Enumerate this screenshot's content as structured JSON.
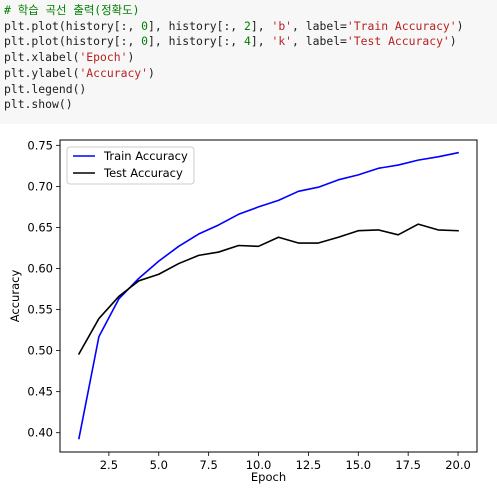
{
  "code_cell": {
    "lines": [
      [
        {
          "t": "# 학습 곡선 출력(정확도)",
          "c": "c-comment"
        }
      ],
      [
        {
          "t": "plt.plot(history[:, "
        },
        {
          "t": "0",
          "c": "c-num"
        },
        {
          "t": "], history[:, "
        },
        {
          "t": "2",
          "c": "c-num"
        },
        {
          "t": "], "
        },
        {
          "t": "'b'",
          "c": "c-str"
        },
        {
          "t": ", label="
        },
        {
          "t": "'Train Accuracy'",
          "c": "c-str"
        },
        {
          "t": ")"
        }
      ],
      [
        {
          "t": "plt.plot(history[:, "
        },
        {
          "t": "0",
          "c": "c-num"
        },
        {
          "t": "], history[:, "
        },
        {
          "t": "4",
          "c": "c-num"
        },
        {
          "t": "], "
        },
        {
          "t": "'k'",
          "c": "c-str"
        },
        {
          "t": ", label="
        },
        {
          "t": "'Test Accuracy'",
          "c": "c-str"
        },
        {
          "t": ")"
        }
      ],
      [
        {
          "t": "plt.xlabel("
        },
        {
          "t": "'Epoch'",
          "c": "c-str"
        },
        {
          "t": ")"
        }
      ],
      [
        {
          "t": "plt.ylabel("
        },
        {
          "t": "'Accuracy'",
          "c": "c-str"
        },
        {
          "t": ")"
        }
      ],
      [
        {
          "t": "plt.legend()"
        }
      ],
      [
        {
          "t": "plt.show()"
        }
      ]
    ]
  },
  "chart_data": {
    "type": "line",
    "title": "",
    "xlabel": "Epoch",
    "ylabel": "Accuracy",
    "xlim": [
      0.05,
      20.95
    ],
    "ylim": [
      0.3765,
      0.7565
    ],
    "xticks": [
      2.5,
      5.0,
      7.5,
      10.0,
      12.5,
      15.0,
      17.5,
      20.0
    ],
    "xtick_labels": [
      "2.5",
      "5.0",
      "7.5",
      "10.0",
      "12.5",
      "15.0",
      "17.5",
      "20.0"
    ],
    "yticks": [
      0.4,
      0.45,
      0.5,
      0.55,
      0.6,
      0.65,
      0.7,
      0.75
    ],
    "ytick_labels": [
      "0.40",
      "0.45",
      "0.50",
      "0.55",
      "0.60",
      "0.65",
      "0.70",
      "0.75"
    ],
    "grid": false,
    "legend_position": "top-left",
    "x": [
      1,
      2,
      3,
      4,
      5,
      6,
      7,
      8,
      9,
      10,
      11,
      12,
      13,
      14,
      15,
      16,
      17,
      18,
      19,
      20
    ],
    "series": [
      {
        "name": "Train Accuracy",
        "color": "#0000ff",
        "values": [
          0.393,
          0.517,
          0.563,
          0.588,
          0.609,
          0.627,
          0.642,
          0.653,
          0.666,
          0.675,
          0.683,
          0.694,
          0.699,
          0.708,
          0.714,
          0.722,
          0.726,
          0.732,
          0.736,
          0.741
        ]
      },
      {
        "name": "Test Accuracy",
        "color": "#000000",
        "values": [
          0.496,
          0.539,
          0.566,
          0.585,
          0.593,
          0.606,
          0.616,
          0.62,
          0.628,
          0.627,
          0.638,
          0.631,
          0.631,
          0.638,
          0.646,
          0.647,
          0.641,
          0.654,
          0.647,
          0.646
        ]
      }
    ]
  }
}
